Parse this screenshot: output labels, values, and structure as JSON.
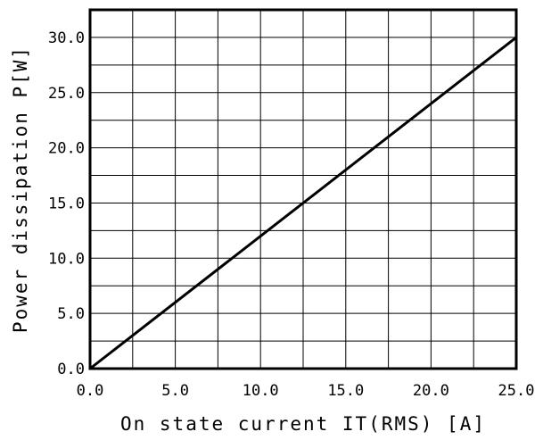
{
  "chart_data": {
    "type": "line",
    "title": "",
    "xlabel": "On state current IT(RMS) [A]",
    "ylabel": "Power dissipation P[W]",
    "xlim": [
      0,
      25
    ],
    "ylim": [
      0,
      32.5
    ],
    "x_ticks": [
      "0.0",
      "5.0",
      "10.0",
      "15.0",
      "20.0",
      "25.0"
    ],
    "y_ticks": [
      "0.0",
      "5.0",
      "10.0",
      "15.0",
      "20.0",
      "25.0",
      "30.0"
    ],
    "grid": true,
    "series": [
      {
        "x": [
          0,
          25
        ],
        "y": [
          0,
          30
        ]
      }
    ],
    "colors": {
      "line": "#000000",
      "grid": "#000000",
      "frame": "#000000"
    }
  }
}
